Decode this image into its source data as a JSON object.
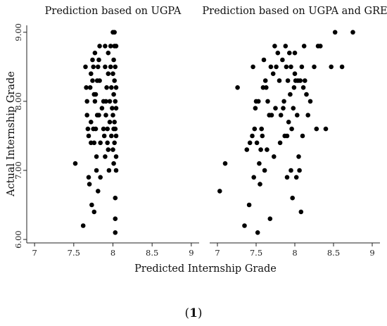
{
  "figure": {
    "label": "1"
  },
  "chart_data": [
    {
      "type": "scatter",
      "title": "Prediction based on UGPA",
      "xlabel": "Predicted Internship Grade",
      "ylabel": "Actual Internship Grade",
      "xlim": [
        6.9,
        9.1
      ],
      "ylim": [
        5.95,
        9.1
      ],
      "xticks": [
        7,
        7.5,
        8,
        8.5,
        9
      ],
      "xtick_labels": [
        "7",
        "7.5",
        "8",
        "8.5",
        "9"
      ],
      "yticks": [
        6,
        7,
        8,
        9
      ],
      "ytick_labels": [
        "6.00",
        "7.00",
        "8.00",
        "9.00"
      ],
      "grid": false,
      "series": [
        {
          "points": [
            [
              7.52,
              7.1
            ],
            [
              7.62,
              6.2
            ],
            [
              7.65,
              8.5
            ],
            [
              7.66,
              8.2
            ],
            [
              7.67,
              7.8
            ],
            [
              7.68,
              7.6
            ],
            [
              7.67,
              8.0
            ],
            [
              7.69,
              7.5
            ],
            [
              7.69,
              6.9
            ],
            [
              7.71,
              8.2
            ],
            [
              7.7,
              6.8
            ],
            [
              7.72,
              8.4
            ],
            [
              7.72,
              7.7
            ],
            [
              7.72,
              7.4
            ],
            [
              7.73,
              6.5
            ],
            [
              7.74,
              8.6
            ],
            [
              7.74,
              8.3
            ],
            [
              7.75,
              8.5
            ],
            [
              7.75,
              7.6
            ],
            [
              7.76,
              8.1
            ],
            [
              7.76,
              7.4
            ],
            [
              7.76,
              6.4
            ],
            [
              7.77,
              8.7
            ],
            [
              7.77,
              8.0
            ],
            [
              7.78,
              8.1
            ],
            [
              7.78,
              7.6
            ],
            [
              7.79,
              7.0
            ],
            [
              7.79,
              7.2
            ],
            [
              7.8,
              8.3
            ],
            [
              7.8,
              7.8
            ],
            [
              7.81,
              8.5
            ],
            [
              7.81,
              6.7
            ],
            [
              7.82,
              8.6
            ],
            [
              7.82,
              7.8
            ],
            [
              7.83,
              8.8
            ],
            [
              7.83,
              8.3
            ],
            [
              7.84,
              7.4
            ],
            [
              7.84,
              6.9
            ],
            [
              7.86,
              7.9
            ],
            [
              7.88,
              8.0
            ],
            [
              7.88,
              7.6
            ],
            [
              7.89,
              7.5
            ],
            [
              7.9,
              8.5
            ],
            [
              7.9,
              8.8
            ],
            [
              7.9,
              7.2
            ],
            [
              7.91,
              8.0
            ],
            [
              7.91,
              7.8
            ],
            [
              7.92,
              8.2
            ],
            [
              7.93,
              7.6
            ],
            [
              7.93,
              7.4
            ],
            [
              7.94,
              8.4
            ],
            [
              7.94,
              8.7
            ],
            [
              7.94,
              7.3
            ],
            [
              7.95,
              7.0
            ],
            [
              7.96,
              8.0
            ],
            [
              7.96,
              7.7
            ],
            [
              7.97,
              8.8
            ],
            [
              7.97,
              8.5
            ],
            [
              7.98,
              8.2
            ],
            [
              7.98,
              7.5
            ],
            [
              7.99,
              7.9
            ],
            [
              8.0,
              9.0
            ],
            [
              8.0,
              8.4
            ],
            [
              8.0,
              7.8
            ],
            [
              8.0,
              7.3
            ],
            [
              8.01,
              8.6
            ],
            [
              8.01,
              8.1
            ],
            [
              8.01,
              7.6
            ],
            [
              8.01,
              7.1
            ],
            [
              8.02,
              9.0
            ],
            [
              8.02,
              8.8
            ],
            [
              8.02,
              8.3
            ],
            [
              8.02,
              7.7
            ],
            [
              8.02,
              7.4
            ],
            [
              8.03,
              8.5
            ],
            [
              8.03,
              8.0
            ],
            [
              8.03,
              7.6
            ],
            [
              8.03,
              6.6
            ],
            [
              8.03,
              6.3
            ],
            [
              8.03,
              6.1
            ],
            [
              8.04,
              8.2
            ],
            [
              8.04,
              7.9
            ],
            [
              8.04,
              7.5
            ],
            [
              8.04,
              7.0
            ],
            [
              8.04,
              8.8
            ],
            [
              8.04,
              7.2
            ]
          ]
        }
      ]
    },
    {
      "type": "scatter",
      "title": "Prediction based on UGPA and GRE",
      "xlabel": "Predicted Internship Grade",
      "ylabel": "Actual Internship Grade",
      "xlim": [
        6.9,
        9.1
      ],
      "ylim": [
        5.95,
        9.1
      ],
      "xticks": [
        7,
        7.5,
        8,
        8.5,
        9
      ],
      "xtick_labels": [
        "7",
        "7.5",
        "8",
        "8.5",
        "9"
      ],
      "yticks": [
        6,
        7,
        8,
        9
      ],
      "ytick_labels": [
        "6.00",
        "7.00",
        "8.00",
        "9.00"
      ],
      "grid": false,
      "series": [
        {
          "points": [
            [
              7.03,
              6.7
            ],
            [
              7.1,
              7.1
            ],
            [
              7.26,
              8.2
            ],
            [
              7.35,
              6.2
            ],
            [
              7.38,
              7.3
            ],
            [
              7.41,
              6.5
            ],
            [
              7.42,
              7.4
            ],
            [
              7.45,
              7.5
            ],
            [
              7.46,
              8.5
            ],
            [
              7.47,
              6.9
            ],
            [
              7.48,
              7.6
            ],
            [
              7.49,
              7.9
            ],
            [
              7.5,
              8.0
            ],
            [
              7.51,
              7.4
            ],
            [
              7.52,
              6.1
            ],
            [
              7.53,
              8.0
            ],
            [
              7.54,
              7.1
            ],
            [
              7.55,
              6.8
            ],
            [
              7.56,
              7.3
            ],
            [
              7.57,
              7.6
            ],
            [
              7.58,
              7.5
            ],
            [
              7.59,
              8.2
            ],
            [
              7.6,
              8.6
            ],
            [
              7.61,
              7.0
            ],
            [
              7.62,
              8.3
            ],
            [
              7.63,
              8.2
            ],
            [
              7.64,
              7.3
            ],
            [
              7.65,
              8.0
            ],
            [
              7.67,
              7.8
            ],
            [
              7.68,
              6.3
            ],
            [
              7.69,
              8.5
            ],
            [
              7.7,
              7.8
            ],
            [
              7.72,
              8.4
            ],
            [
              7.73,
              7.2
            ],
            [
              7.74,
              8.8
            ],
            [
              7.75,
              7.9
            ],
            [
              7.76,
              8.5
            ],
            [
              7.78,
              8.7
            ],
            [
              7.8,
              8.3
            ],
            [
              7.81,
              7.4
            ],
            [
              7.82,
              7.8
            ],
            [
              7.84,
              8.6
            ],
            [
              7.85,
              7.9
            ],
            [
              7.86,
              8.0
            ],
            [
              7.87,
              7.5
            ],
            [
              7.88,
              8.8
            ],
            [
              7.89,
              8.5
            ],
            [
              7.9,
              7.5
            ],
            [
              7.9,
              6.9
            ],
            [
              7.91,
              8.3
            ],
            [
              7.92,
              7.7
            ],
            [
              7.93,
              8.7
            ],
            [
              7.94,
              8.1
            ],
            [
              7.95,
              7.0
            ],
            [
              7.95,
              8.5
            ],
            [
              7.96,
              7.6
            ],
            [
              7.97,
              6.6
            ],
            [
              7.98,
              7.9
            ],
            [
              7.99,
              8.2
            ],
            [
              8.0,
              8.7
            ],
            [
              8.0,
              8.4
            ],
            [
              8.01,
              8.3
            ],
            [
              8.02,
              6.9
            ],
            [
              8.03,
              7.8
            ],
            [
              8.04,
              8.3
            ],
            [
              8.05,
              7.2
            ],
            [
              8.06,
              7.0
            ],
            [
              8.07,
              8.3
            ],
            [
              8.08,
              6.4
            ],
            [
              8.09,
              8.5
            ],
            [
              8.1,
              7.5
            ],
            [
              8.11,
              8.2
            ],
            [
              8.12,
              8.8
            ],
            [
              8.13,
              8.3
            ],
            [
              8.15,
              8.1
            ],
            [
              8.17,
              7.8
            ],
            [
              8.2,
              8.0
            ],
            [
              8.25,
              8.5
            ],
            [
              8.28,
              7.6
            ],
            [
              8.3,
              8.8
            ],
            [
              8.33,
              8.8
            ],
            [
              8.4,
              7.6
            ],
            [
              8.47,
              8.5
            ],
            [
              8.52,
              9.0
            ],
            [
              8.61,
              8.5
            ],
            [
              8.75,
              9.0
            ]
          ]
        }
      ]
    }
  ]
}
